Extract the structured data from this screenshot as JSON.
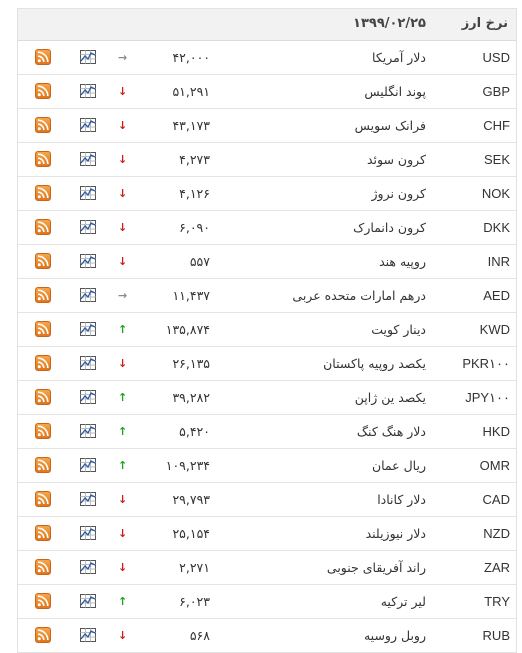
{
  "header": {
    "title": "نرخ ارز",
    "date": "۱۳۹۹/۰۲/۲۵"
  },
  "rows": [
    {
      "code": "USD",
      "name": "دلار آمریکا",
      "price": "۴۲,۰۰۰",
      "trend": "flat"
    },
    {
      "code": "GBP",
      "name": "پوند انگلیس",
      "price": "۵۱,۲۹۱",
      "trend": "down"
    },
    {
      "code": "CHF",
      "name": "فرانک سویس",
      "price": "۴۳,۱۷۳",
      "trend": "down"
    },
    {
      "code": "SEK",
      "name": "کرون سوئد",
      "price": "۴,۲۷۳",
      "trend": "down"
    },
    {
      "code": "NOK",
      "name": "کرون نروژ",
      "price": "۴,۱۲۶",
      "trend": "down"
    },
    {
      "code": "DKK",
      "name": "کرون دانمارک",
      "price": "۶,۰۹۰",
      "trend": "down"
    },
    {
      "code": "INR",
      "name": "روپیه هند",
      "price": "۵۵۷",
      "trend": "down"
    },
    {
      "code": "AED",
      "name": "درهم امارات متحده عربی",
      "price": "۱۱,۴۳۷",
      "trend": "flat"
    },
    {
      "code": "KWD",
      "name": "دینار کویت",
      "price": "۱۳۵,۸۷۴",
      "trend": "up"
    },
    {
      "code": "PKR۱۰۰",
      "name": "یکصد روپیه پاکستان",
      "price": "۲۶,۱۳۵",
      "trend": "down"
    },
    {
      "code": "JPY۱۰۰",
      "name": "یکصد ین ژاپن",
      "price": "۳۹,۲۸۲",
      "trend": "up"
    },
    {
      "code": "HKD",
      "name": "دلار هنگ کنگ",
      "price": "۵,۴۲۰",
      "trend": "up"
    },
    {
      "code": "OMR",
      "name": "ریال عمان",
      "price": "۱۰۹,۲۳۴",
      "trend": "up"
    },
    {
      "code": "CAD",
      "name": "دلار کانادا",
      "price": "۲۹,۷۹۳",
      "trend": "down"
    },
    {
      "code": "NZD",
      "name": "دلار نیوزیلند",
      "price": "۲۵,۱۵۴",
      "trend": "down"
    },
    {
      "code": "ZAR",
      "name": "راند آفریقای جنوبی",
      "price": "۲,۲۷۱",
      "trend": "down"
    },
    {
      "code": "TRY",
      "name": "لیر ترکیه",
      "price": "۶,۰۲۳",
      "trend": "up"
    },
    {
      "code": "RUB",
      "name": "روبل روسیه",
      "price": "۵۶۸",
      "trend": "down"
    }
  ],
  "icons": {
    "chart": "line-chart-icon",
    "rss": "rss-feed-icon"
  },
  "colors": {
    "up": "#1aa51a",
    "down": "#d21a1a",
    "flat": "#8a8a8a",
    "rss": "#f0882a"
  }
}
